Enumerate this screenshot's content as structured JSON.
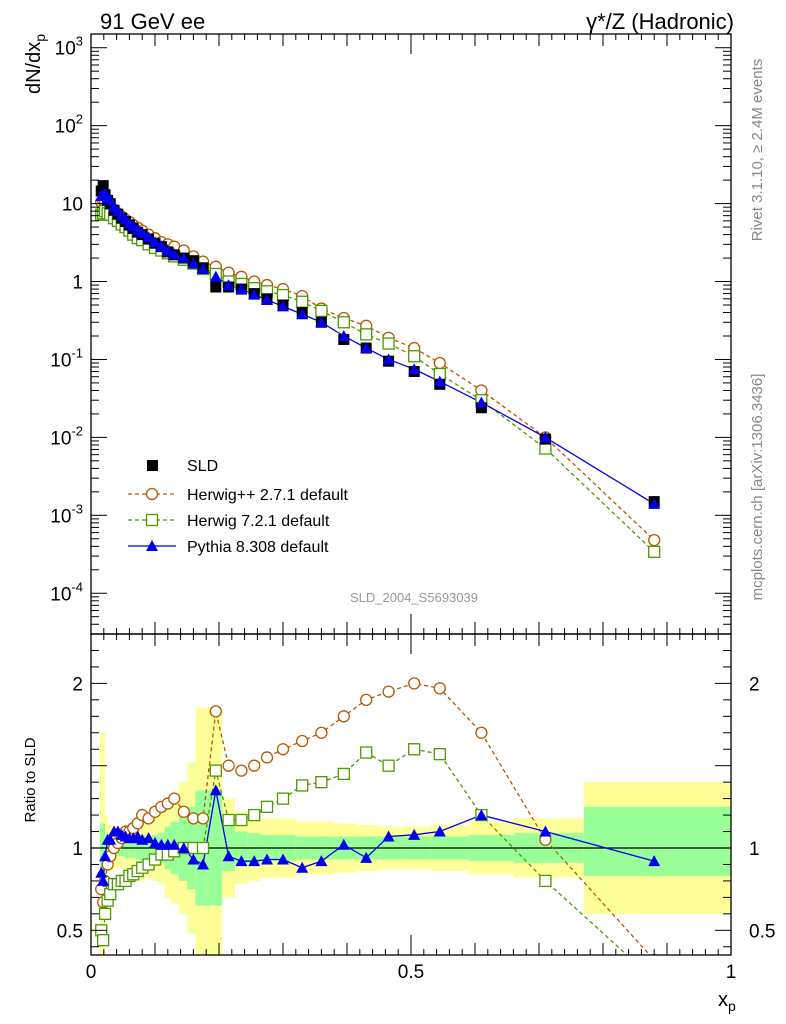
{
  "header": {
    "left": "91 GeV ee",
    "right": "γ*/Z (Hadronic)"
  },
  "side": {
    "rivet": "Rivet 3.1.10, ≥ 2.4M events",
    "mcplots": "mcplots.cern.ch [arXiv:1306.3436]"
  },
  "watermark": "SLD_2004_S5693039",
  "colors": {
    "data": "#000000",
    "herwigpp": "#b35900",
    "herwig7": "#4d9900",
    "pythia": "#0000ee",
    "band_outer": "#ffff99",
    "band_inner": "#99ff99"
  },
  "chart_data": [
    {
      "type": "scatter",
      "ylabel": "dN/dx_p",
      "yscale": "log",
      "xlim": [
        0,
        1
      ],
      "ylim": [
        3e-05,
        1500
      ],
      "y_ticks": [
        {
          "value": 1000,
          "label": "10^3"
        },
        {
          "value": 100,
          "label": "10^2"
        },
        {
          "value": 10,
          "label": "10"
        },
        {
          "value": 1,
          "label": "1"
        },
        {
          "value": 0.1,
          "label": "10^-1"
        },
        {
          "value": 0.01,
          "label": "10^-2"
        },
        {
          "value": 0.001,
          "label": "10^-3"
        },
        {
          "value": 0.0001,
          "label": "10^-4"
        }
      ],
      "legend_position": "bottom-left",
      "series": [
        {
          "name": "SLD",
          "marker": "square-filled",
          "x": [
            0.016,
            0.019,
            0.022,
            0.026,
            0.03,
            0.036,
            0.042,
            0.048,
            0.054,
            0.06,
            0.066,
            0.073,
            0.08,
            0.09,
            0.1,
            0.11,
            0.12,
            0.13,
            0.145,
            0.16,
            0.175,
            0.195,
            0.215,
            0.235,
            0.255,
            0.275,
            0.3,
            0.33,
            0.36,
            0.395,
            0.43,
            0.465,
            0.505,
            0.545,
            0.61,
            0.71,
            0.88
          ],
          "y": [
            14.5,
            17,
            13,
            11,
            10,
            8.2,
            7.3,
            6.5,
            5.9,
            5.3,
            4.8,
            4.3,
            4.0,
            3.5,
            3.1,
            2.8,
            2.4,
            2.2,
            2.0,
            1.85,
            1.5,
            0.85,
            0.85,
            0.8,
            0.7,
            0.6,
            0.5,
            0.4,
            0.3,
            0.18,
            0.14,
            0.095,
            0.07,
            0.048,
            0.024,
            0.0095,
            0.0015
          ]
        },
        {
          "name": "Herwig++ 2.7.1 default",
          "marker": "circle-open",
          "line": "dashed",
          "x": [
            0.016,
            0.019,
            0.022,
            0.026,
            0.03,
            0.036,
            0.042,
            0.048,
            0.054,
            0.06,
            0.066,
            0.073,
            0.08,
            0.09,
            0.1,
            0.11,
            0.12,
            0.13,
            0.145,
            0.16,
            0.175,
            0.195,
            0.215,
            0.235,
            0.255,
            0.275,
            0.3,
            0.33,
            0.36,
            0.395,
            0.43,
            0.465,
            0.505,
            0.545,
            0.61,
            0.71,
            0.88
          ],
          "y": [
            10.5,
            11,
            10.5,
            10,
            9.5,
            8.4,
            7.5,
            6.8,
            6.2,
            5.8,
            5.3,
            4.9,
            4.5,
            4.0,
            3.6,
            3.2,
            3.0,
            2.8,
            2.5,
            2.1,
            1.8,
            1.55,
            1.3,
            1.15,
            1.0,
            0.9,
            0.8,
            0.65,
            0.45,
            0.34,
            0.27,
            0.19,
            0.14,
            0.09,
            0.04,
            0.01,
            0.00048
          ]
        },
        {
          "name": "Herwig 7.2.1 default",
          "marker": "square-open",
          "line": "dashed",
          "x": [
            0.016,
            0.019,
            0.022,
            0.026,
            0.03,
            0.036,
            0.042,
            0.048,
            0.054,
            0.06,
            0.066,
            0.073,
            0.08,
            0.09,
            0.1,
            0.11,
            0.12,
            0.13,
            0.145,
            0.16,
            0.175,
            0.195,
            0.215,
            0.235,
            0.255,
            0.275,
            0.3,
            0.33,
            0.36,
            0.395,
            0.43,
            0.465,
            0.505,
            0.545,
            0.61,
            0.71,
            0.88
          ],
          "y": [
            7.2,
            7.5,
            8.0,
            7.5,
            7.2,
            6.5,
            6.0,
            5.4,
            5.0,
            4.5,
            4.0,
            3.6,
            3.4,
            3.0,
            2.7,
            2.5,
            2.3,
            2.1,
            1.9,
            1.7,
            1.45,
            1.25,
            1.0,
            0.93,
            0.82,
            0.75,
            0.67,
            0.55,
            0.42,
            0.3,
            0.21,
            0.16,
            0.11,
            0.065,
            0.03,
            0.0072,
            0.00034
          ]
        },
        {
          "name": "Pythia 8.308 default",
          "marker": "triangle-filled",
          "line": "solid",
          "x": [
            0.016,
            0.019,
            0.022,
            0.026,
            0.03,
            0.036,
            0.042,
            0.048,
            0.054,
            0.06,
            0.066,
            0.073,
            0.08,
            0.09,
            0.1,
            0.11,
            0.12,
            0.13,
            0.145,
            0.16,
            0.175,
            0.195,
            0.215,
            0.235,
            0.255,
            0.275,
            0.3,
            0.33,
            0.36,
            0.395,
            0.43,
            0.465,
            0.505,
            0.545,
            0.61,
            0.71,
            0.88
          ],
          "y": [
            12.5,
            12.7,
            13.5,
            11.8,
            11,
            9,
            8,
            7,
            6.3,
            5.6,
            5.1,
            4.6,
            4.2,
            3.7,
            3.2,
            2.85,
            2.5,
            2.25,
            2.0,
            1.7,
            1.45,
            1.15,
            0.9,
            0.8,
            0.68,
            0.58,
            0.48,
            0.38,
            0.3,
            0.2,
            0.14,
            0.1,
            0.075,
            0.052,
            0.028,
            0.01,
            0.0014
          ]
        }
      ]
    },
    {
      "type": "line",
      "xlabel": "x_p",
      "ylabel": "Ratio to SLD",
      "xlim": [
        0,
        1
      ],
      "ylim": [
        0.35,
        2.3
      ],
      "x_ticks": [
        {
          "value": 0,
          "label": "0"
        },
        {
          "value": 0.5,
          "label": "0.5"
        },
        {
          "value": 1,
          "label": "1"
        }
      ],
      "y_ticks": [
        {
          "value": 0.5,
          "label": "0.5"
        },
        {
          "value": 1,
          "label": "1"
        },
        {
          "value": 2,
          "label": "2"
        }
      ],
      "bands": {
        "edges": [
          0.014,
          0.018,
          0.022,
          0.026,
          0.03,
          0.035,
          0.04,
          0.046,
          0.052,
          0.058,
          0.064,
          0.07,
          0.076,
          0.085,
          0.095,
          0.105,
          0.115,
          0.125,
          0.137,
          0.15,
          0.163,
          0.18,
          0.205,
          0.225,
          0.245,
          0.265,
          0.29,
          0.32,
          0.35,
          0.38,
          0.415,
          0.45,
          0.49,
          0.53,
          0.59,
          0.66,
          0.77,
          1.0
        ],
        "outer_low": [
          0.35,
          0.35,
          0.8,
          0.86,
          0.86,
          0.88,
          0.87,
          0.88,
          0.86,
          0.86,
          0.85,
          0.82,
          0.8,
          0.82,
          0.8,
          0.78,
          0.7,
          0.66,
          0.6,
          0.48,
          0.35,
          0.35,
          0.7,
          0.78,
          0.8,
          0.82,
          0.82,
          0.84,
          0.84,
          0.85,
          0.86,
          0.87,
          0.87,
          0.86,
          0.84,
          0.82,
          0.6
        ],
        "outer_high": [
          1.7,
          1.7,
          1.2,
          1.14,
          1.14,
          1.12,
          1.13,
          1.12,
          1.14,
          1.14,
          1.15,
          1.18,
          1.2,
          1.18,
          1.2,
          1.22,
          1.3,
          1.34,
          1.4,
          1.52,
          1.85,
          1.85,
          1.3,
          1.22,
          1.2,
          1.18,
          1.18,
          1.16,
          1.16,
          1.15,
          1.14,
          1.13,
          1.13,
          1.14,
          1.16,
          1.18,
          1.4
        ],
        "inner_low": [
          0.85,
          0.85,
          0.92,
          0.94,
          0.94,
          0.95,
          0.95,
          0.95,
          0.94,
          0.94,
          0.94,
          0.93,
          0.92,
          0.93,
          0.92,
          0.91,
          0.87,
          0.84,
          0.8,
          0.75,
          0.65,
          0.65,
          0.86,
          0.9,
          0.91,
          0.92,
          0.92,
          0.93,
          0.93,
          0.93,
          0.93,
          0.93,
          0.93,
          0.93,
          0.92,
          0.91,
          0.83
        ],
        "inner_high": [
          1.15,
          1.15,
          1.08,
          1.06,
          1.06,
          1.05,
          1.05,
          1.05,
          1.06,
          1.06,
          1.06,
          1.07,
          1.08,
          1.07,
          1.08,
          1.09,
          1.13,
          1.16,
          1.2,
          1.25,
          1.35,
          1.35,
          1.14,
          1.1,
          1.09,
          1.08,
          1.08,
          1.07,
          1.07,
          1.07,
          1.07,
          1.07,
          1.07,
          1.07,
          1.08,
          1.09,
          1.25
        ]
      },
      "series": [
        {
          "name": "Herwig++ 2.7.1 default",
          "x": [
            0.016,
            0.019,
            0.022,
            0.026,
            0.03,
            0.036,
            0.042,
            0.048,
            0.054,
            0.06,
            0.066,
            0.073,
            0.08,
            0.09,
            0.1,
            0.11,
            0.12,
            0.13,
            0.145,
            0.16,
            0.175,
            0.195,
            0.215,
            0.235,
            0.255,
            0.275,
            0.3,
            0.33,
            0.36,
            0.395,
            0.43,
            0.465,
            0.505,
            0.545,
            0.61,
            0.71,
            0.88
          ],
          "y": [
            0.75,
            0.67,
            0.8,
            0.9,
            0.95,
            1.0,
            1.03,
            1.06,
            1.1,
            1.1,
            1.12,
            1.15,
            1.2,
            1.18,
            1.22,
            1.25,
            1.27,
            1.3,
            1.22,
            1.18,
            1.18,
            1.83,
            1.5,
            1.47,
            1.5,
            1.55,
            1.6,
            1.65,
            1.7,
            1.8,
            1.9,
            1.95,
            2.0,
            1.97,
            1.7,
            1.05,
            0.32
          ]
        },
        {
          "name": "Herwig 7.2.1 default",
          "x": [
            0.016,
            0.019,
            0.022,
            0.026,
            0.03,
            0.036,
            0.042,
            0.048,
            0.054,
            0.06,
            0.066,
            0.073,
            0.08,
            0.09,
            0.1,
            0.11,
            0.12,
            0.13,
            0.145,
            0.16,
            0.175,
            0.195,
            0.215,
            0.235,
            0.255,
            0.275,
            0.3,
            0.33,
            0.36,
            0.395,
            0.43,
            0.465,
            0.505,
            0.545,
            0.61,
            0.71,
            0.88
          ],
          "y": [
            0.5,
            0.44,
            0.6,
            0.68,
            0.72,
            0.78,
            0.78,
            0.8,
            0.8,
            0.83,
            0.84,
            0.86,
            0.88,
            0.9,
            0.93,
            0.96,
            0.96,
            0.98,
            1.0,
            1.0,
            1.0,
            1.47,
            1.17,
            1.17,
            1.2,
            1.25,
            1.3,
            1.38,
            1.4,
            1.45,
            1.58,
            1.5,
            1.6,
            1.57,
            1.2,
            0.8,
            0.2
          ]
        },
        {
          "name": "Pythia 8.308 default",
          "x": [
            0.016,
            0.019,
            0.022,
            0.026,
            0.03,
            0.036,
            0.042,
            0.048,
            0.054,
            0.06,
            0.066,
            0.073,
            0.08,
            0.09,
            0.1,
            0.11,
            0.12,
            0.13,
            0.145,
            0.16,
            0.175,
            0.195,
            0.215,
            0.235,
            0.255,
            0.275,
            0.3,
            0.33,
            0.36,
            0.395,
            0.43,
            0.465,
            0.505,
            0.545,
            0.61,
            0.71,
            0.88
          ],
          "y": [
            0.85,
            0.8,
            0.95,
            1.05,
            1.05,
            1.1,
            1.1,
            1.08,
            1.07,
            1.06,
            1.06,
            1.07,
            1.05,
            1.06,
            1.03,
            1.02,
            1.02,
            1.02,
            1.0,
            0.93,
            0.9,
            1.35,
            0.95,
            0.92,
            0.92,
            0.93,
            0.93,
            0.88,
            0.92,
            1.02,
            0.94,
            1.07,
            1.08,
            1.1,
            1.2,
            1.1,
            0.92
          ]
        }
      ]
    }
  ]
}
